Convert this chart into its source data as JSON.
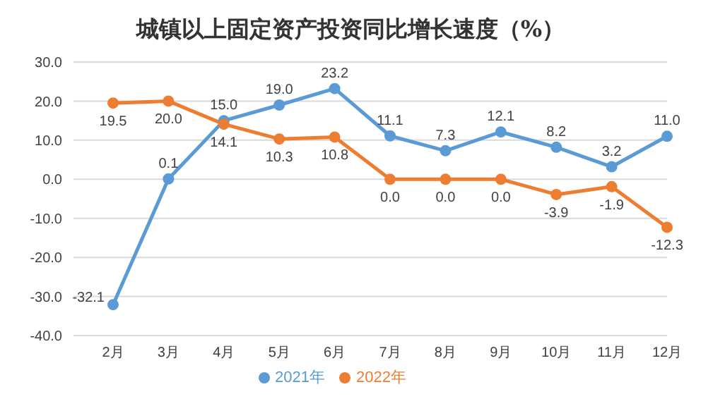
{
  "chart_data": {
    "type": "line",
    "title": "城镇以上固定资产投资同比增长速度（%）",
    "categories": [
      "2月",
      "3月",
      "4月",
      "5月",
      "6月",
      "7月",
      "8月",
      "9月",
      "10月",
      "11月",
      "12月"
    ],
    "series": [
      {
        "name": "2021年",
        "color": "#5b9bd5",
        "values": [
          -32.1,
          0.1,
          15.0,
          19.0,
          23.2,
          11.1,
          7.3,
          12.1,
          8.2,
          3.2,
          11.0
        ],
        "value_labels": [
          "-32.1",
          "0.1",
          "15.0",
          "19.0",
          "23.2",
          "11.1",
          "7.3",
          "12.1",
          "8.2",
          "3.2",
          "11.0"
        ]
      },
      {
        "name": "2022年",
        "color": "#ed7d31",
        "values": [
          19.5,
          20.0,
          14.1,
          10.3,
          10.8,
          0.0,
          0.0,
          0.0,
          -3.9,
          -1.9,
          -12.3
        ],
        "value_labels": [
          "19.5",
          "20.0",
          "14.1",
          "10.3",
          "10.8",
          "0.0",
          "0.0",
          "0.0",
          "-3.9",
          "-1.9",
          "-12.3"
        ]
      }
    ],
    "ylim": [
      -40,
      30
    ],
    "yticks": [
      {
        "value": -40,
        "label": "-40.0"
      },
      {
        "value": -30,
        "label": "-30.0"
      },
      {
        "value": -20,
        "label": "-20.0"
      },
      {
        "value": -10,
        "label": "-10.0"
      },
      {
        "value": 0,
        "label": "0.0"
      },
      {
        "value": 10,
        "label": "10.0"
      },
      {
        "value": 20,
        "label": "20.0"
      },
      {
        "value": 30,
        "label": "30.0"
      }
    ],
    "grid": "y",
    "legend": "bottom",
    "marker": "circle",
    "line_style": "solid"
  }
}
